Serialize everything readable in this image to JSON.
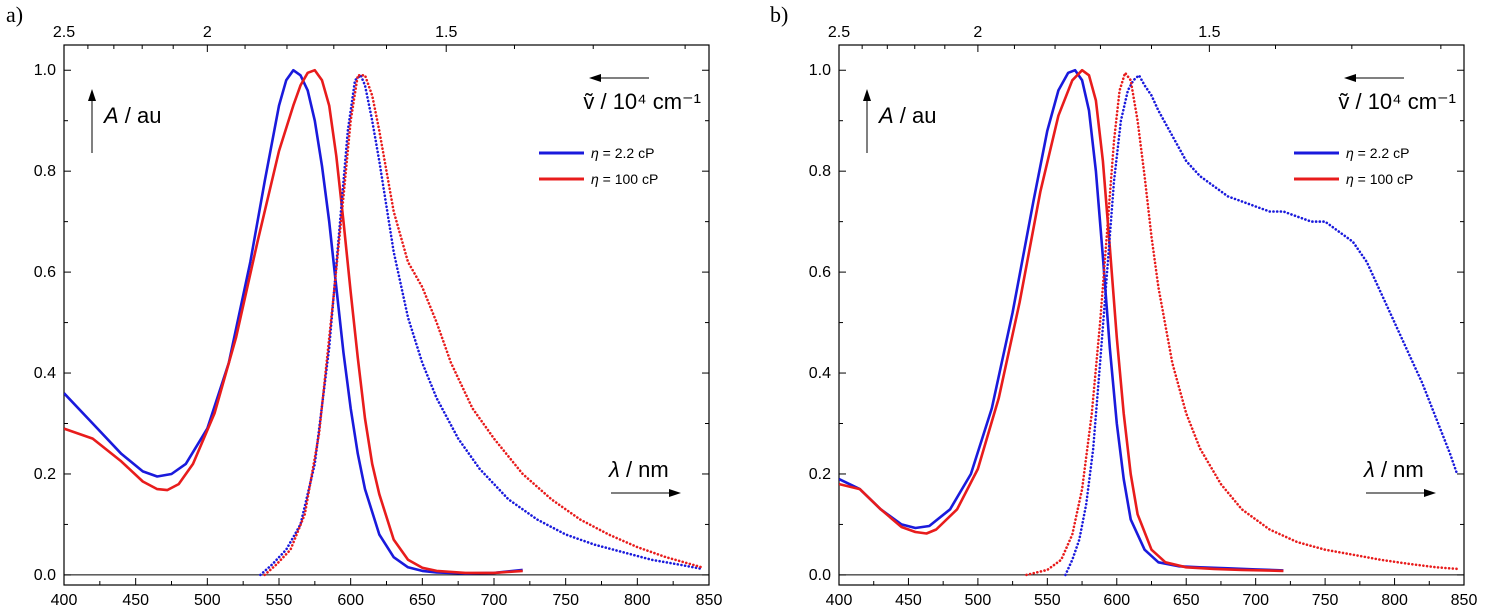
{
  "chart_data": [
    {
      "panel_label": "a)",
      "type": "line",
      "xlabel_symbol": "λ",
      "xlabel_unit": " / nm",
      "ylabel_symbol": "A",
      "ylabel_unit": " / au",
      "top_axis_label": "ṽ / 10⁴ cm⁻¹",
      "xlim": [
        400,
        850
      ],
      "ylim": [
        -0.02,
        1.05
      ],
      "x_ticks": [
        "400",
        "450",
        "500",
        "550",
        "600",
        "650",
        "700",
        "750",
        "800",
        "850"
      ],
      "y_ticks": [
        "0.0",
        "0.2",
        "0.4",
        "0.6",
        "0.8",
        "1.0"
      ],
      "top_ticks": [
        "2.5",
        "2",
        "1.5"
      ],
      "legend": [
        {
          "sym": "η",
          "text": " = 2.2 cP",
          "color": "#1a1adc"
        },
        {
          "sym": "η",
          "text": " = 100 cP",
          "color": "#e81c1c"
        }
      ],
      "series": [
        {
          "name": "η = 2.2 cP",
          "kind": "absorption",
          "style": "solid",
          "color": "#1a1adc",
          "x": [
            400,
            420,
            440,
            455,
            465,
            475,
            485,
            500,
            515,
            530,
            540,
            550,
            555,
            560,
            565,
            570,
            575,
            580,
            585,
            590,
            595,
            600,
            605,
            610,
            620,
            630,
            640,
            650,
            660,
            680,
            700,
            720
          ],
          "y": [
            0.36,
            0.3,
            0.24,
            0.205,
            0.195,
            0.2,
            0.22,
            0.29,
            0.42,
            0.62,
            0.78,
            0.93,
            0.98,
            1.0,
            0.99,
            0.96,
            0.9,
            0.81,
            0.7,
            0.57,
            0.44,
            0.33,
            0.24,
            0.17,
            0.08,
            0.035,
            0.015,
            0.008,
            0.005,
            0.003,
            0.004,
            0.01
          ]
        },
        {
          "name": "η = 100 cP",
          "kind": "absorption",
          "style": "solid",
          "color": "#e81c1c",
          "x": [
            400,
            420,
            440,
            455,
            465,
            472,
            480,
            490,
            505,
            520,
            535,
            550,
            560,
            565,
            570,
            575,
            580,
            585,
            590,
            595,
            600,
            605,
            610,
            615,
            620,
            630,
            640,
            650,
            660,
            680,
            700,
            720
          ],
          "y": [
            0.29,
            0.27,
            0.225,
            0.185,
            0.17,
            0.168,
            0.18,
            0.22,
            0.32,
            0.47,
            0.66,
            0.84,
            0.93,
            0.97,
            0.995,
            1.0,
            0.98,
            0.93,
            0.83,
            0.7,
            0.56,
            0.43,
            0.31,
            0.22,
            0.16,
            0.07,
            0.03,
            0.014,
            0.008,
            0.004,
            0.004,
            0.008
          ]
        },
        {
          "name": "η = 2.2 cP",
          "kind": "emission",
          "style": "dotted",
          "color": "#1a1adc",
          "x": [
            537,
            545,
            555,
            565,
            575,
            585,
            592,
            598,
            603,
            607,
            610,
            615,
            620,
            630,
            640,
            650,
            660,
            675,
            690,
            710,
            730,
            750,
            770,
            790,
            810,
            830,
            845
          ],
          "y": [
            0.0,
            0.02,
            0.05,
            0.1,
            0.22,
            0.45,
            0.68,
            0.88,
            0.98,
            0.99,
            0.97,
            0.9,
            0.82,
            0.64,
            0.51,
            0.42,
            0.35,
            0.27,
            0.21,
            0.15,
            0.11,
            0.08,
            0.06,
            0.045,
            0.03,
            0.02,
            0.012
          ]
        },
        {
          "name": "η = 100 cP",
          "kind": "emission",
          "style": "dotted",
          "color": "#e81c1c",
          "x": [
            540,
            548,
            558,
            568,
            578,
            588,
            595,
            600,
            605,
            610,
            615,
            620,
            630,
            640,
            650,
            660,
            670,
            685,
            700,
            720,
            740,
            760,
            780,
            800,
            820,
            845
          ],
          "y": [
            0.0,
            0.02,
            0.05,
            0.12,
            0.28,
            0.55,
            0.75,
            0.9,
            0.99,
            0.99,
            0.95,
            0.88,
            0.72,
            0.62,
            0.57,
            0.5,
            0.42,
            0.33,
            0.27,
            0.2,
            0.15,
            0.11,
            0.08,
            0.055,
            0.035,
            0.015
          ]
        }
      ]
    },
    {
      "panel_label": "b)",
      "type": "line",
      "xlabel_symbol": "λ",
      "xlabel_unit": " / nm",
      "ylabel_symbol": "A",
      "ylabel_unit": " / au",
      "top_axis_label": "ṽ / 10⁴ cm⁻¹",
      "xlim": [
        400,
        850
      ],
      "ylim": [
        -0.02,
        1.05
      ],
      "x_ticks": [
        "400",
        "450",
        "500",
        "550",
        "600",
        "650",
        "700",
        "750",
        "800",
        "850"
      ],
      "y_ticks": [
        "0.0",
        "0.2",
        "0.4",
        "0.6",
        "0.8",
        "1.0"
      ],
      "top_ticks": [
        "2.5",
        "2",
        "1.5"
      ],
      "legend": [
        {
          "sym": "η",
          "text": " = 2.2 cP",
          "color": "#1a1adc"
        },
        {
          "sym": "η",
          "text": " = 100 cP",
          "color": "#e81c1c"
        }
      ],
      "series": [
        {
          "name": "η = 2.2 cP",
          "kind": "absorption",
          "style": "solid",
          "color": "#1a1adc",
          "x": [
            400,
            415,
            430,
            445,
            455,
            465,
            480,
            495,
            510,
            525,
            540,
            550,
            558,
            565,
            570,
            575,
            580,
            585,
            590,
            595,
            600,
            605,
            610,
            620,
            630,
            645,
            660,
            680,
            700,
            720
          ],
          "y": [
            0.19,
            0.17,
            0.13,
            0.1,
            0.093,
            0.097,
            0.13,
            0.2,
            0.33,
            0.52,
            0.74,
            0.88,
            0.96,
            0.995,
            1.0,
            0.98,
            0.92,
            0.8,
            0.63,
            0.45,
            0.3,
            0.19,
            0.11,
            0.05,
            0.025,
            0.017,
            0.015,
            0.013,
            0.011,
            0.009
          ]
        },
        {
          "name": "η = 100 cP",
          "kind": "absorption",
          "style": "solid",
          "color": "#e81c1c",
          "x": [
            400,
            415,
            430,
            445,
            455,
            463,
            470,
            485,
            500,
            515,
            530,
            545,
            558,
            568,
            575,
            580,
            585,
            590,
            595,
            600,
            605,
            610,
            615,
            625,
            635,
            650,
            670,
            690,
            720
          ],
          "y": [
            0.18,
            0.17,
            0.13,
            0.095,
            0.085,
            0.082,
            0.09,
            0.13,
            0.21,
            0.35,
            0.54,
            0.76,
            0.91,
            0.98,
            1.0,
            0.99,
            0.94,
            0.82,
            0.65,
            0.47,
            0.32,
            0.2,
            0.12,
            0.05,
            0.025,
            0.015,
            0.012,
            0.01,
            0.008
          ]
        },
        {
          "name": "η = 2.2 cP",
          "kind": "emission",
          "style": "dotted",
          "color": "#1a1adc",
          "x": [
            563,
            568,
            573,
            578,
            583,
            588,
            593,
            598,
            603,
            608,
            612,
            616,
            620,
            625,
            630,
            640,
            650,
            660,
            670,
            680,
            690,
            700,
            710,
            720,
            730,
            740,
            750,
            760,
            770,
            780,
            790,
            800,
            810,
            820,
            830,
            840,
            845
          ],
          "y": [
            0.0,
            0.03,
            0.07,
            0.14,
            0.25,
            0.42,
            0.6,
            0.78,
            0.9,
            0.96,
            0.98,
            0.99,
            0.97,
            0.95,
            0.92,
            0.87,
            0.82,
            0.79,
            0.77,
            0.75,
            0.74,
            0.73,
            0.72,
            0.72,
            0.71,
            0.7,
            0.7,
            0.68,
            0.66,
            0.62,
            0.56,
            0.5,
            0.44,
            0.38,
            0.31,
            0.24,
            0.2
          ]
        },
        {
          "name": "η = 100 cP",
          "kind": "emission",
          "style": "dotted",
          "color": "#e81c1c",
          "x": [
            535,
            550,
            560,
            568,
            575,
            582,
            588,
            593,
            598,
            602,
            606,
            610,
            615,
            620,
            625,
            630,
            640,
            650,
            660,
            675,
            690,
            710,
            730,
            750,
            770,
            790,
            810,
            830,
            845
          ],
          "y": [
            0.0,
            0.01,
            0.03,
            0.08,
            0.17,
            0.32,
            0.5,
            0.68,
            0.86,
            0.96,
            0.995,
            0.98,
            0.9,
            0.79,
            0.67,
            0.57,
            0.42,
            0.32,
            0.25,
            0.18,
            0.13,
            0.09,
            0.065,
            0.05,
            0.04,
            0.03,
            0.022,
            0.015,
            0.012
          ]
        }
      ]
    }
  ]
}
